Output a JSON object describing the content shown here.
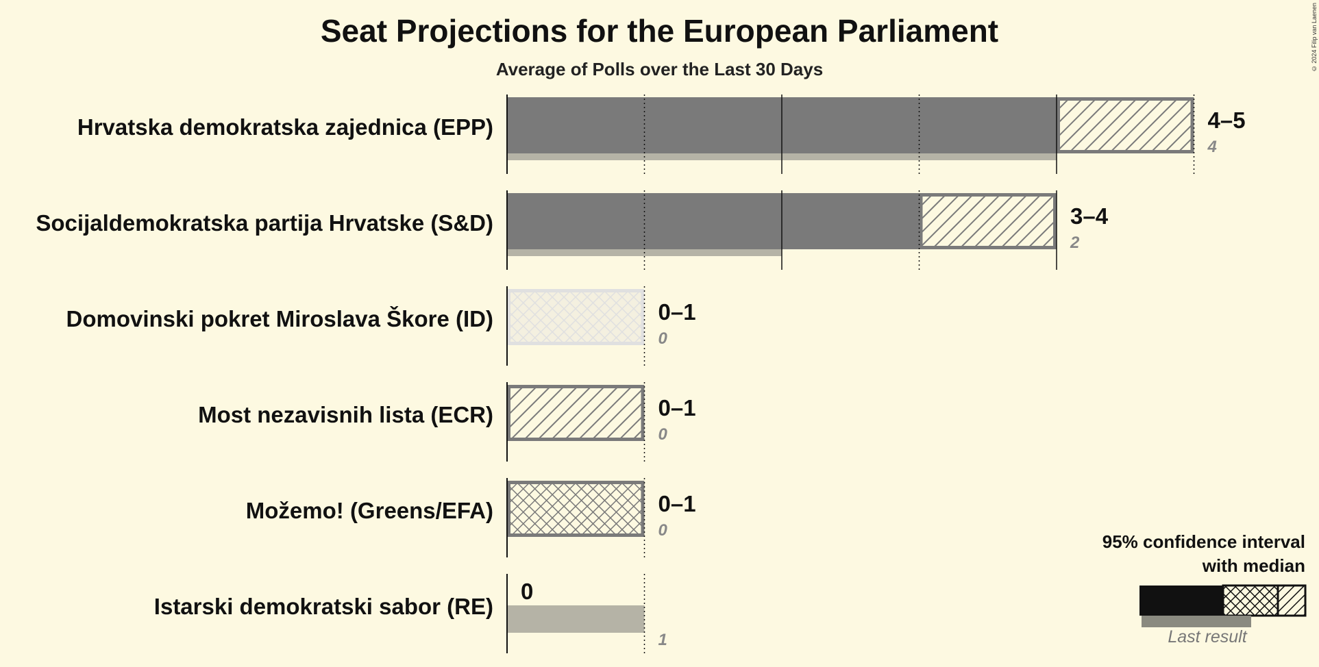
{
  "title": "Seat Projections for the European Parliament",
  "subtitle": "Average of Polls over the Last 30 Days",
  "copyright": "© 2024 Filip van Laenen",
  "legend": {
    "interval_label": "95% confidence interval with median",
    "interval_label_line1": "95% confidence interval",
    "interval_label_line2": "with median",
    "last_result_label": "Last result"
  },
  "chart_data": {
    "type": "bar",
    "orientation": "horizontal",
    "title": "Seat Projections for the European Parliament",
    "subtitle": "Average of Polls over the Last 30 Days",
    "xlim": [
      0,
      5
    ],
    "grid": "vertical lines at each seat",
    "legend_position": "bottom-right",
    "categories": [
      "Hrvatska demokratska zajednica (EPP)",
      "Socijaldemokratska partija Hrvatske (S&D)",
      "Domovinski pokret Miroslava Škore (ID)",
      "Most nezavisnih lista (ECR)",
      "Možemo! (Greens/EFA)",
      "Istarski demokratski sabor (RE)"
    ],
    "series": [
      {
        "name": "95% confidence interval",
        "low": [
          4,
          3,
          0,
          0,
          0,
          0
        ],
        "high": [
          5,
          4,
          1,
          1,
          1,
          0
        ]
      },
      {
        "name": "Last result",
        "values": [
          4,
          2,
          0,
          0,
          0,
          1
        ]
      }
    ],
    "range_labels": [
      "4–5",
      "3–4",
      "0–1",
      "0–1",
      "0–1",
      "0"
    ],
    "last_result_labels": [
      "4",
      "2",
      "0",
      "0",
      "0",
      "1"
    ],
    "fill_style": [
      "solid",
      "solid",
      "light",
      "hatch",
      "crosshatch",
      "none"
    ]
  },
  "colors": {
    "background": "#fdf9e1",
    "bar": "#7a7a7a",
    "last_result": "#b5b3a6",
    "light_bar": "#e6e6e6",
    "text": "#111111",
    "muted": "#888888"
  }
}
